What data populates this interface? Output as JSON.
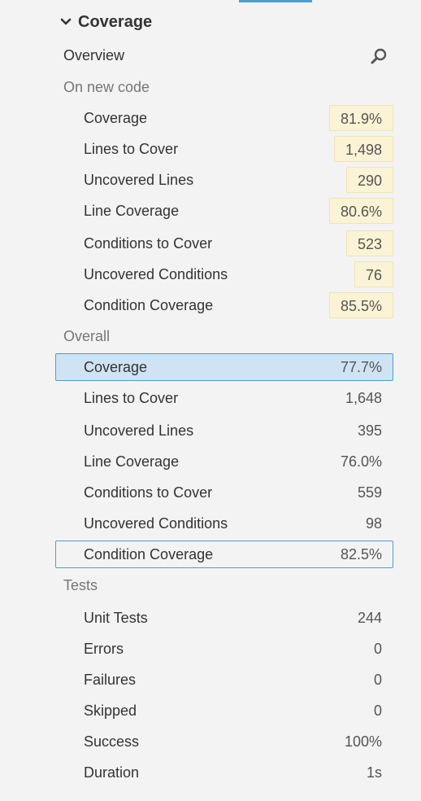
{
  "header": {
    "title": "Coverage",
    "icon": "chevron-down-icon"
  },
  "overview": {
    "label": "Overview",
    "icon": "search-icon"
  },
  "new_code": {
    "label": "On new code",
    "items": [
      {
        "label": "Coverage",
        "value": "81.9%"
      },
      {
        "label": "Lines to Cover",
        "value": "1,498"
      },
      {
        "label": "Uncovered Lines",
        "value": "290"
      },
      {
        "label": "Line Coverage",
        "value": "80.6%"
      },
      {
        "label": "Conditions to Cover",
        "value": "523"
      },
      {
        "label": "Uncovered Conditions",
        "value": "76"
      },
      {
        "label": "Condition Coverage",
        "value": "85.5%"
      }
    ]
  },
  "overall": {
    "label": "Overall",
    "items": [
      {
        "label": "Coverage",
        "value": "77.7%",
        "state": "selected"
      },
      {
        "label": "Lines to Cover",
        "value": "1,648"
      },
      {
        "label": "Uncovered Lines",
        "value": "395"
      },
      {
        "label": "Line Coverage",
        "value": "76.0%"
      },
      {
        "label": "Conditions to Cover",
        "value": "559"
      },
      {
        "label": "Uncovered Conditions",
        "value": "98"
      },
      {
        "label": "Condition Coverage",
        "value": "82.5%",
        "state": "focused"
      }
    ]
  },
  "tests": {
    "label": "Tests",
    "items": [
      {
        "label": "Unit Tests",
        "value": "244"
      },
      {
        "label": "Errors",
        "value": "0"
      },
      {
        "label": "Failures",
        "value": "0"
      },
      {
        "label": "Skipped",
        "value": "0"
      },
      {
        "label": "Success",
        "value": "100%"
      },
      {
        "label": "Duration",
        "value": "1s"
      }
    ]
  },
  "colors": {
    "accent": "#4b9fd5",
    "selected_bg": "#cfe3f2",
    "highlight_bg": "#fbf3d5",
    "highlight_border": "#f1e4b2",
    "background": "#f3f3f3"
  }
}
